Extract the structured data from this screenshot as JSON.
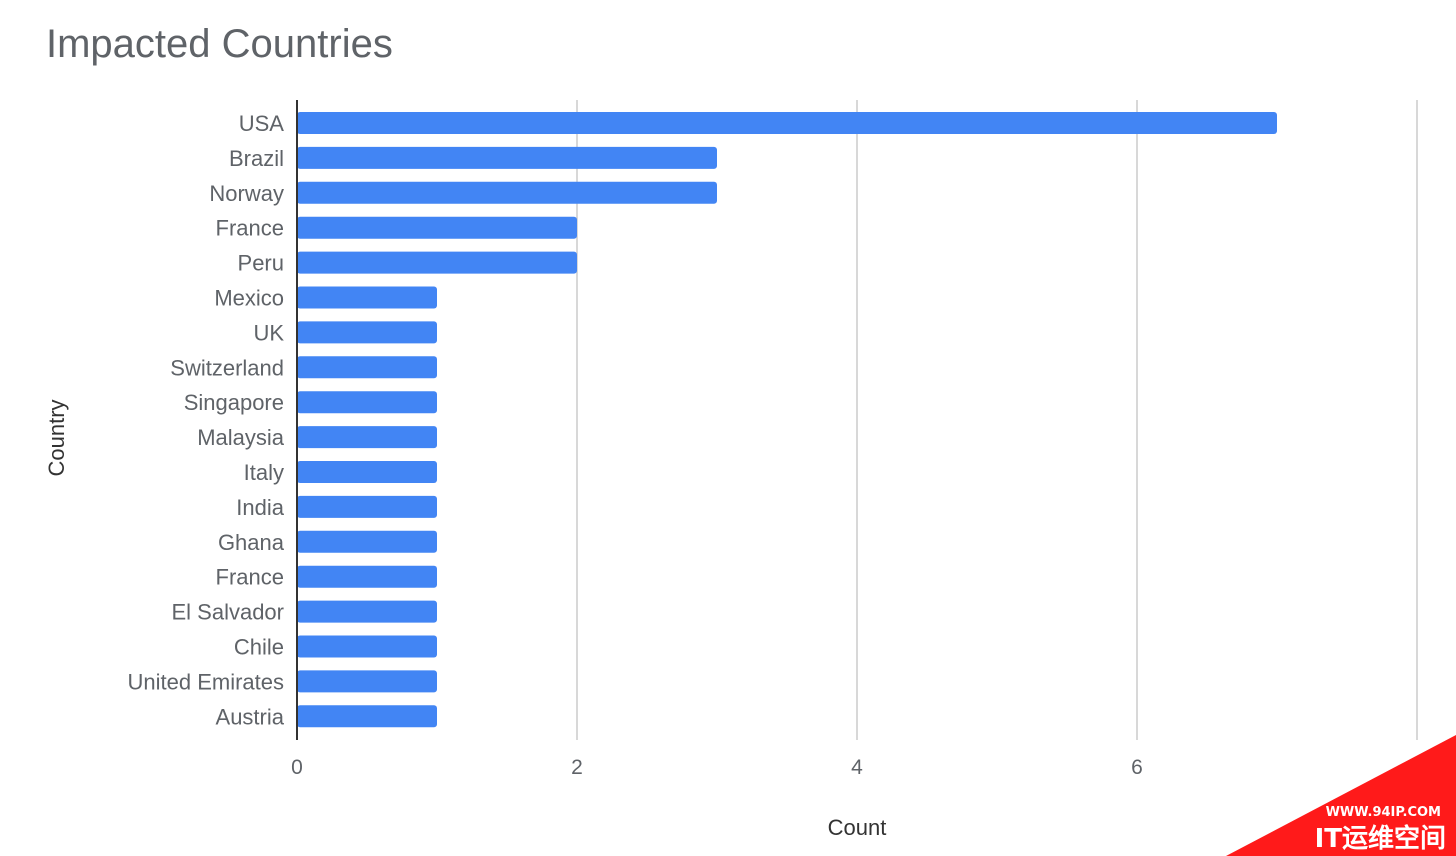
{
  "chart_data": {
    "type": "bar",
    "orientation": "horizontal",
    "title": "Impacted Countries",
    "xlabel": "Count",
    "ylabel": "Country",
    "categories": [
      "USA",
      "Brazil",
      "Norway",
      "France",
      "Peru",
      "Mexico",
      "UK",
      "Switzerland",
      "Singapore",
      "Malaysia",
      "Italy",
      "India",
      "Ghana",
      "France",
      "El Salvador",
      "Chile",
      "United Emirates",
      "Austria"
    ],
    "values": [
      7,
      3,
      3,
      2,
      2,
      1,
      1,
      1,
      1,
      1,
      1,
      1,
      1,
      1,
      1,
      1,
      1,
      1
    ],
    "xlim": [
      0,
      8
    ],
    "xticks": [
      "0",
      "2",
      "4",
      "6"
    ],
    "grid": true,
    "legend": "none",
    "bar_color": "#4285f4",
    "grid_color": "#cccccc",
    "axis_color": "#333333"
  },
  "watermark": {
    "url": "WWW.94IP.COM",
    "text": "IT运维空间",
    "color": "#ff1a1a"
  }
}
